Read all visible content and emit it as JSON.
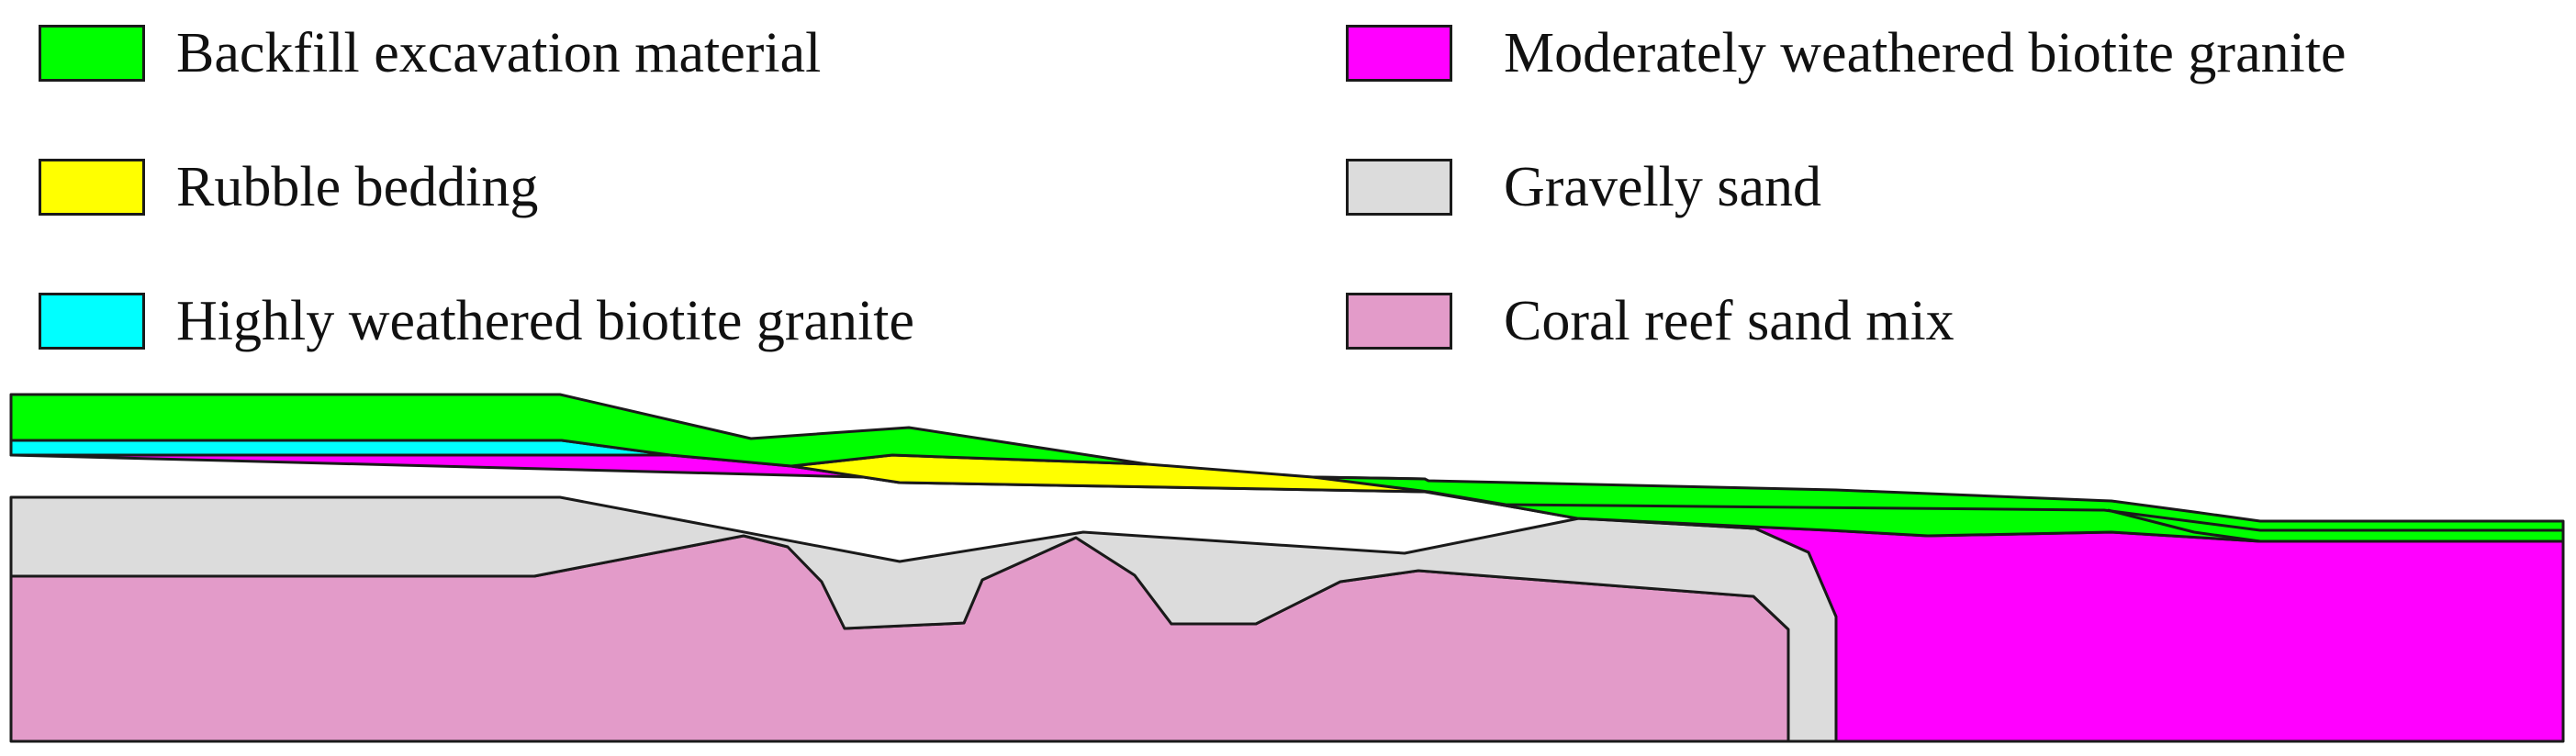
{
  "legend": {
    "items": [
      {
        "label": "Backfill excavation material",
        "color": "#00ff00"
      },
      {
        "label": "Rubble bedding",
        "color": "#ffff00"
      },
      {
        "label": "Highly weathered biotite granite",
        "color": "#00ffff"
      },
      {
        "label": "Moderately weathered biotite granite",
        "color": "#ff00ff"
      },
      {
        "label": "Gravelly sand",
        "color": "#dcdcdc"
      },
      {
        "label": "Coral reef sand mix",
        "color": "#e39bc9"
      }
    ]
  }
}
